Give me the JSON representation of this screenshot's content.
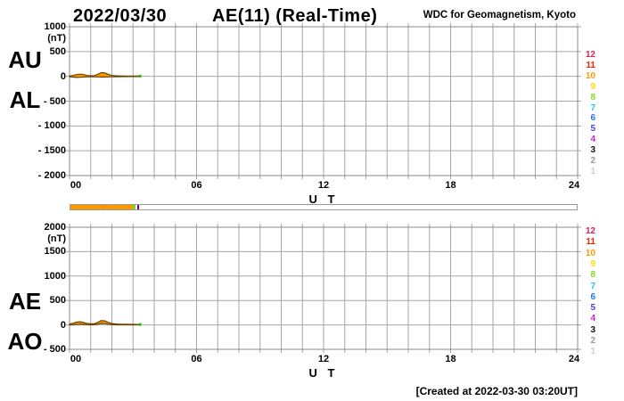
{
  "header": {
    "date": "2022/03/30",
    "title": "AE(11) (Real-Time)",
    "organization": "WDC for Geomagnetism, Kyoto"
  },
  "footer": {
    "created_note": "[Created at 2022-03-30 03:20UT]"
  },
  "colors": {
    "grid": "#a6a6a6",
    "frame": "#8a8a8a",
    "trace_fill": "#ff9900",
    "trace_stroke": "#6b4400",
    "latest_dot": "#22bb00",
    "bar_border": "#999999",
    "text": "#000000"
  },
  "legend_stations": [
    {
      "label": "12",
      "color": "#dd2255"
    },
    {
      "label": "11",
      "color": "#ff2200"
    },
    {
      "label": "10",
      "color": "#ff9900"
    },
    {
      "label": "9",
      "color": "#ffdd00"
    },
    {
      "label": "8",
      "color": "#7fdd22"
    },
    {
      "label": "7",
      "color": "#22cce0"
    },
    {
      "label": "6",
      "color": "#2277ee"
    },
    {
      "label": "5",
      "color": "#4444ee"
    },
    {
      "label": "4",
      "color": "#cc22cc"
    },
    {
      "label": "3",
      "color": "#111111"
    },
    {
      "label": "2",
      "color": "#999999"
    },
    {
      "label": "1",
      "color": "#cccccc"
    }
  ],
  "progress_bar": {
    "range_hours": [
      0,
      24
    ],
    "segments": [
      {
        "start_hour": 0,
        "end_hour": 2.95,
        "color": "#ff9900"
      },
      {
        "start_hour": 2.95,
        "end_hour": 3.08,
        "color": "#77dd11"
      }
    ],
    "divider_hours": [
      1.5
    ],
    "divider_color": "#ee8800",
    "marker_hour": 3.17,
    "marker_color": "#770077"
  },
  "chart_data": [
    {
      "type": "line",
      "panel": "upper",
      "unit": "(nT)",
      "ylim": [
        -2000,
        1000
      ],
      "yticks": [
        1000,
        500,
        0,
        -500,
        -1000,
        -1500,
        -2000
      ],
      "ytick_labels": [
        "1000",
        "500",
        "0",
        "- 500",
        "- 1000",
        "- 1500",
        "- 2000"
      ],
      "xlim_hours": [
        0,
        24
      ],
      "grid_hours_step": 1,
      "xticks": [
        0,
        6,
        12,
        18,
        24
      ],
      "xtick_labels": [
        "00",
        "06",
        "12",
        "18",
        "24"
      ],
      "xlabel": "U T",
      "x_hours": [
        0,
        0.17,
        0.33,
        0.5,
        0.67,
        0.83,
        1,
        1.17,
        1.33,
        1.5,
        1.67,
        1.83,
        2,
        2.17,
        2.33,
        2.5,
        2.67,
        2.83,
        3,
        3.17,
        3.33
      ],
      "series": [
        {
          "name": "AU",
          "values": [
            8,
            18,
            35,
            45,
            35,
            18,
            12,
            15,
            40,
            75,
            68,
            40,
            18,
            12,
            9,
            8,
            7,
            6,
            6,
            5,
            5
          ]
        },
        {
          "name": "AL",
          "values": [
            -10,
            -15,
            -22,
            -18,
            -15,
            -12,
            -9,
            -9,
            -12,
            -15,
            -14,
            -11,
            -9,
            -8,
            -7,
            -6,
            -6,
            -5,
            -5,
            -4,
            -4
          ]
        }
      ],
      "latest_point_hour": 3.33
    },
    {
      "type": "line",
      "panel": "lower",
      "unit": "(nT)",
      "ylim": [
        -500,
        2000
      ],
      "yticks": [
        2000,
        1500,
        1000,
        500,
        0,
        -500
      ],
      "ytick_labels": [
        "2000",
        "1500",
        "1000",
        "500",
        "0",
        "- 500"
      ],
      "xlim_hours": [
        0,
        24
      ],
      "grid_hours_step": 1,
      "xticks": [
        0,
        6,
        12,
        18,
        24
      ],
      "xtick_labels": [
        "00",
        "06",
        "12",
        "18",
        "24"
      ],
      "xlabel": "U T",
      "x_hours": [
        0,
        0.17,
        0.33,
        0.5,
        0.67,
        0.83,
        1,
        1.17,
        1.33,
        1.5,
        1.67,
        1.83,
        2,
        2.17,
        2.33,
        2.5,
        2.67,
        2.83,
        3,
        3.17,
        3.33
      ],
      "series": [
        {
          "name": "AE",
          "values": [
            18,
            33,
            57,
            63,
            50,
            30,
            21,
            24,
            52,
            90,
            82,
            51,
            27,
            20,
            16,
            14,
            13,
            11,
            11,
            9,
            9
          ]
        },
        {
          "name": "AO",
          "values": [
            -1,
            2,
            7,
            14,
            10,
            3,
            2,
            3,
            14,
            30,
            27,
            15,
            5,
            2,
            1,
            1,
            1,
            1,
            1,
            1,
            1
          ]
        }
      ],
      "latest_point_hour": 3.33
    }
  ]
}
